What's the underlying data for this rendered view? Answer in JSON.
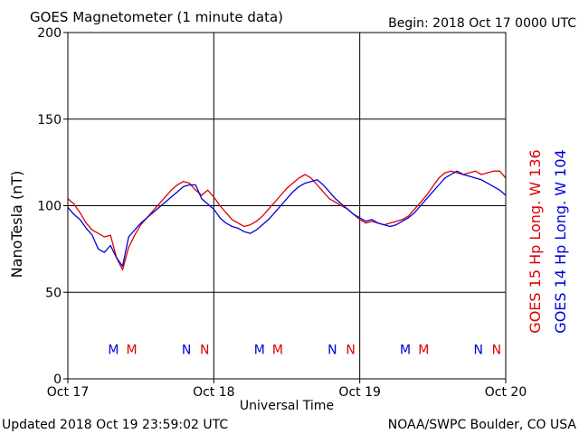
{
  "header": {
    "title": "GOES Magnetometer (1 minute data)",
    "begin": "Begin:  2018 Oct 17 0000 UTC"
  },
  "footer": {
    "updated": "Updated 2018 Oct 19 23:59:02 UTC",
    "source": "NOAA/SWPC Boulder, CO USA"
  },
  "colors": {
    "goes15": "#dd0000",
    "goes14": "#0000dd",
    "axis": "#000000"
  },
  "chart_data": {
    "type": "line",
    "xlabel": "Universal Time",
    "ylabel": "NanoTesla (nT)",
    "ylim": [
      0,
      200
    ],
    "yticks": [
      0,
      50,
      100,
      150,
      200
    ],
    "xlim": [
      0,
      72
    ],
    "xticks": [
      {
        "x": 0,
        "label": "Oct 17"
      },
      {
        "x": 24,
        "label": "Oct 18"
      },
      {
        "x": 48,
        "label": "Oct 19"
      },
      {
        "x": 72,
        "label": "Oct 20"
      }
    ],
    "grid": true,
    "legend": "right",
    "series": [
      {
        "name": "GOES 15 Hp  Long. W 136",
        "color": "#dd0000",
        "x": [
          0,
          1,
          2,
          3,
          4,
          5,
          6,
          7,
          8,
          9,
          10,
          11,
          12,
          13,
          14,
          15,
          16,
          17,
          18,
          19,
          20,
          21,
          22,
          23,
          24,
          25,
          26,
          27,
          28,
          29,
          30,
          31,
          32,
          33,
          34,
          35,
          36,
          37,
          38,
          39,
          40,
          41,
          42,
          43,
          44,
          45,
          46,
          47,
          48,
          49,
          50,
          51,
          52,
          53,
          54,
          55,
          56,
          57,
          58,
          59,
          60,
          61,
          62,
          63,
          64,
          65,
          66,
          67,
          68,
          69,
          70,
          71,
          72
        ],
        "values": [
          104,
          101,
          96,
          90,
          86,
          84,
          82,
          83,
          70,
          63,
          76,
          83,
          89,
          93,
          97,
          101,
          105,
          109,
          112,
          114,
          113,
          109,
          106,
          109,
          105,
          100,
          96,
          92,
          90,
          88,
          89,
          91,
          94,
          98,
          102,
          106,
          110,
          113,
          116,
          118,
          116,
          112,
          108,
          104,
          102,
          100,
          98,
          95,
          92,
          90,
          91,
          90,
          89,
          90,
          91,
          92,
          94,
          98,
          102,
          106,
          111,
          116,
          119,
          120,
          119,
          118,
          119,
          120,
          118,
          119,
          120,
          120,
          116
        ]
      },
      {
        "name": "GOES 14 Hp  Long. W 104",
        "color": "#0000dd",
        "x": [
          0,
          1,
          2,
          3,
          4,
          5,
          6,
          7,
          8,
          9,
          10,
          11,
          12,
          13,
          14,
          15,
          16,
          17,
          18,
          19,
          20,
          21,
          22,
          23,
          24,
          25,
          26,
          27,
          28,
          29,
          30,
          31,
          32,
          33,
          34,
          35,
          36,
          37,
          38,
          39,
          40,
          41,
          42,
          43,
          44,
          45,
          46,
          47,
          48,
          49,
          50,
          51,
          52,
          53,
          54,
          55,
          56,
          57,
          58,
          59,
          60,
          61,
          62,
          63,
          64,
          65,
          66,
          67,
          68,
          69,
          70,
          71,
          72
        ],
        "values": [
          99,
          95,
          92,
          87,
          83,
          75,
          73,
          77,
          70,
          65,
          82,
          86,
          90,
          93,
          96,
          99,
          102,
          105,
          108,
          111,
          112,
          112,
          104,
          101,
          98,
          93,
          90,
          88,
          87,
          85,
          84,
          86,
          89,
          92,
          96,
          100,
          104,
          108,
          111,
          113,
          114,
          115,
          112,
          108,
          104,
          101,
          98,
          95,
          93,
          91,
          92,
          90,
          89,
          88,
          89,
          91,
          93,
          96,
          100,
          104,
          108,
          112,
          116,
          118,
          120,
          118,
          117,
          116,
          115,
          113,
          111,
          109,
          106
        ]
      }
    ],
    "markers": [
      {
        "label": "M",
        "series": "GOES 14 Hp  Long. W 104",
        "x": 7.5
      },
      {
        "label": "M",
        "series": "GOES 15 Hp  Long. W 136",
        "x": 10.5
      },
      {
        "label": "N",
        "series": "GOES 14 Hp  Long. W 104",
        "x": 19.5
      },
      {
        "label": "N",
        "series": "GOES 15 Hp  Long. W 136",
        "x": 22.5
      },
      {
        "label": "M",
        "series": "GOES 14 Hp  Long. W 104",
        "x": 31.5
      },
      {
        "label": "M",
        "series": "GOES 15 Hp  Long. W 136",
        "x": 34.5
      },
      {
        "label": "N",
        "series": "GOES 14 Hp  Long. W 104",
        "x": 43.5
      },
      {
        "label": "N",
        "series": "GOES 15 Hp  Long. W 136",
        "x": 46.5
      },
      {
        "label": "M",
        "series": "GOES 14 Hp  Long. W 104",
        "x": 55.5
      },
      {
        "label": "M",
        "series": "GOES 15 Hp  Long. W 136",
        "x": 58.5
      },
      {
        "label": "N",
        "series": "GOES 14 Hp  Long. W 104",
        "x": 67.5
      },
      {
        "label": "N",
        "series": "GOES 15 Hp  Long. W 136",
        "x": 70.5
      }
    ],
    "marker_level": 17
  }
}
